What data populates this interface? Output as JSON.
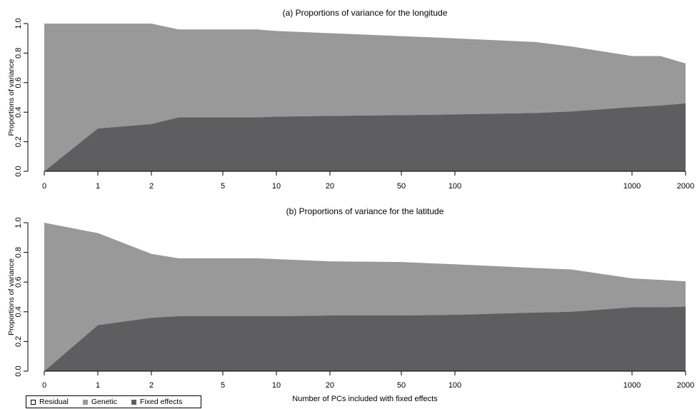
{
  "chart_data": [
    {
      "type": "area",
      "title": "(a) Proportions of variance for the longitude",
      "ylabel": "Proportions of variance",
      "xlabel": "",
      "ylim": [
        0,
        1.0
      ],
      "yticks": [
        "0.0",
        "0.2",
        "0.4",
        "0.6",
        "0.8",
        "1.0"
      ],
      "xticks": [
        "0",
        "1",
        "2",
        "5",
        "10",
        "20",
        "50",
        "100",
        "1000",
        "2000"
      ],
      "x": [
        "0",
        "1",
        "2",
        "3",
        "5",
        "8",
        "10",
        "20",
        "50",
        "100",
        "300",
        "500",
        "1000",
        "1500",
        "2000"
      ],
      "series": [
        {
          "name": "Fixed effects",
          "color": "#5e5e60",
          "values": [
            0.0,
            0.29,
            0.32,
            0.365,
            0.365,
            0.365,
            0.37,
            0.375,
            0.38,
            0.385,
            0.395,
            0.405,
            0.435,
            0.445,
            0.46
          ]
        },
        {
          "name": "Genetic",
          "color": "#999999",
          "values": [
            1.0,
            0.71,
            0.68,
            0.595,
            0.595,
            0.595,
            0.58,
            0.56,
            0.535,
            0.515,
            0.48,
            0.44,
            0.345,
            0.335,
            0.27
          ]
        },
        {
          "name": "Residual",
          "color": "#ffffff",
          "values": [
            0.0,
            0.0,
            0.0,
            0.04,
            0.04,
            0.04,
            0.05,
            0.065,
            0.085,
            0.1,
            0.125,
            0.155,
            0.22,
            0.22,
            0.27
          ]
        }
      ]
    },
    {
      "type": "area",
      "title": "(b) Proportions of variance for the latitude",
      "ylabel": "Proportions of variance",
      "xlabel": "Number of PCs included with fixed effects",
      "ylim": [
        0,
        1.0
      ],
      "yticks": [
        "0.0",
        "0.2",
        "0.4",
        "0.6",
        "0.8",
        "1.0"
      ],
      "xticks": [
        "0",
        "1",
        "2",
        "5",
        "10",
        "20",
        "50",
        "100",
        "1000",
        "2000"
      ],
      "x": [
        "0",
        "1",
        "2",
        "3",
        "5",
        "8",
        "10",
        "20",
        "50",
        "100",
        "300",
        "500",
        "1000",
        "1500",
        "2000"
      ],
      "series": [
        {
          "name": "Fixed effects",
          "color": "#5e5e60",
          "values": [
            0.0,
            0.31,
            0.36,
            0.37,
            0.37,
            0.37,
            0.37,
            0.375,
            0.375,
            0.38,
            0.395,
            0.4,
            0.43,
            0.43,
            0.435
          ]
        },
        {
          "name": "Genetic",
          "color": "#999999",
          "values": [
            1.0,
            0.62,
            0.43,
            0.39,
            0.39,
            0.39,
            0.385,
            0.365,
            0.36,
            0.34,
            0.3,
            0.285,
            0.195,
            0.185,
            0.17
          ]
        },
        {
          "name": "Residual",
          "color": "#ffffff",
          "values": [
            0.0,
            0.07,
            0.21,
            0.24,
            0.24,
            0.24,
            0.245,
            0.26,
            0.265,
            0.28,
            0.305,
            0.315,
            0.375,
            0.385,
            0.395
          ]
        }
      ]
    }
  ],
  "legend": {
    "items": [
      {
        "label": "Residual",
        "color": "#ffffff"
      },
      {
        "label": "Genetic",
        "color": "#999999"
      },
      {
        "label": "Fixed effects",
        "color": "#5e5e60"
      }
    ]
  }
}
